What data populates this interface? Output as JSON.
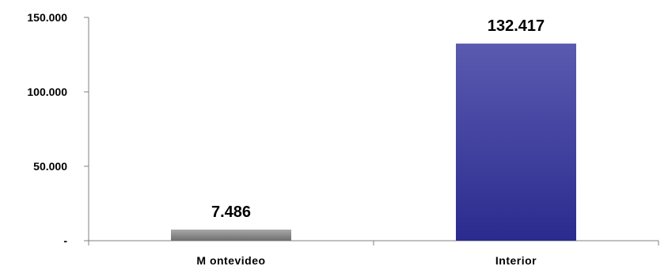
{
  "chart_data": {
    "type": "bar",
    "title": "",
    "xlabel": "",
    "ylabel": "",
    "categories": [
      "M ontevideo",
      "Interior"
    ],
    "values": [
      7486,
      132417
    ],
    "data_labels": [
      "7.486",
      "132.417"
    ],
    "ylim": [
      0,
      150000
    ],
    "yticks": [
      0,
      50000,
      100000,
      150000
    ],
    "ytick_labels": [
      "-",
      "50.000",
      "100.000",
      "150.000"
    ],
    "grid": false,
    "legend": "none",
    "colors": {
      "Montevideo_top": "#a8a8a8",
      "Montevideo_bottom": "#6f6f6f",
      "Interior_top": "#5a5ab0",
      "Interior_bottom": "#2b2b8f",
      "axis": "#808080"
    }
  }
}
